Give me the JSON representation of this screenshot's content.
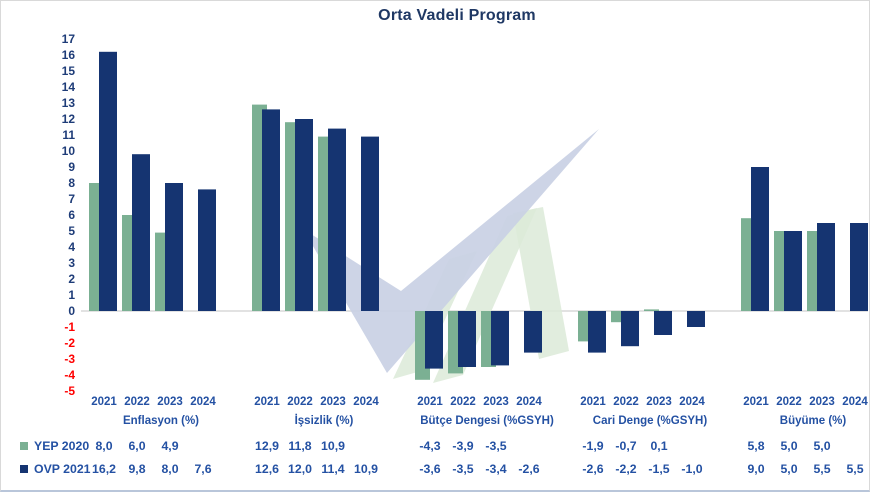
{
  "title": "Orta Vadeli Program",
  "chart_data": {
    "type": "bar",
    "title": "Orta Vadeli Program",
    "categories": [
      "Enflasyon (%)",
      "İşsizlik (%)",
      "Bütçe Dengesi (%GSYH)",
      "Cari Denge (%GSYH)",
      "Büyüme (%)"
    ],
    "years": [
      "2021",
      "2022",
      "2023",
      "2024"
    ],
    "series": [
      {
        "name": "YEP 2020",
        "color": "#7bb093",
        "values": [
          [
            8.0,
            6.0,
            4.9,
            null
          ],
          [
            12.9,
            11.8,
            10.9,
            null
          ],
          [
            -4.3,
            -3.9,
            -3.5,
            null
          ],
          [
            -1.9,
            -0.7,
            0.1,
            null
          ],
          [
            5.8,
            5.0,
            5.0,
            null
          ]
        ]
      },
      {
        "name": "OVP 2021",
        "color": "#153471",
        "values": [
          [
            16.2,
            9.8,
            8.0,
            7.6
          ],
          [
            12.6,
            12.0,
            11.4,
            10.9
          ],
          [
            -3.6,
            -3.5,
            -3.4,
            -2.6
          ],
          [
            -2.6,
            -2.2,
            -1.5,
            -1.0
          ],
          [
            9.0,
            5.0,
            5.5,
            5.5
          ]
        ]
      }
    ],
    "ylim": [
      -5,
      17
    ],
    "y_tick_step": 1,
    "decimal_separator": ",",
    "grid": "zero-line-only",
    "legend_position": "bottom-left"
  },
  "colors": {
    "title_text": "#1f3864",
    "label_text": "#2451a3",
    "axis_positive": "#1e3c78",
    "axis_negative": "#ff0000",
    "zero_line": "#d9d9d9",
    "frame_border": "#d9d9d9",
    "bottom_rule": "#b9c6da",
    "watermark_check": "#c9d0e4",
    "watermark_stripe": "#dcead8"
  }
}
